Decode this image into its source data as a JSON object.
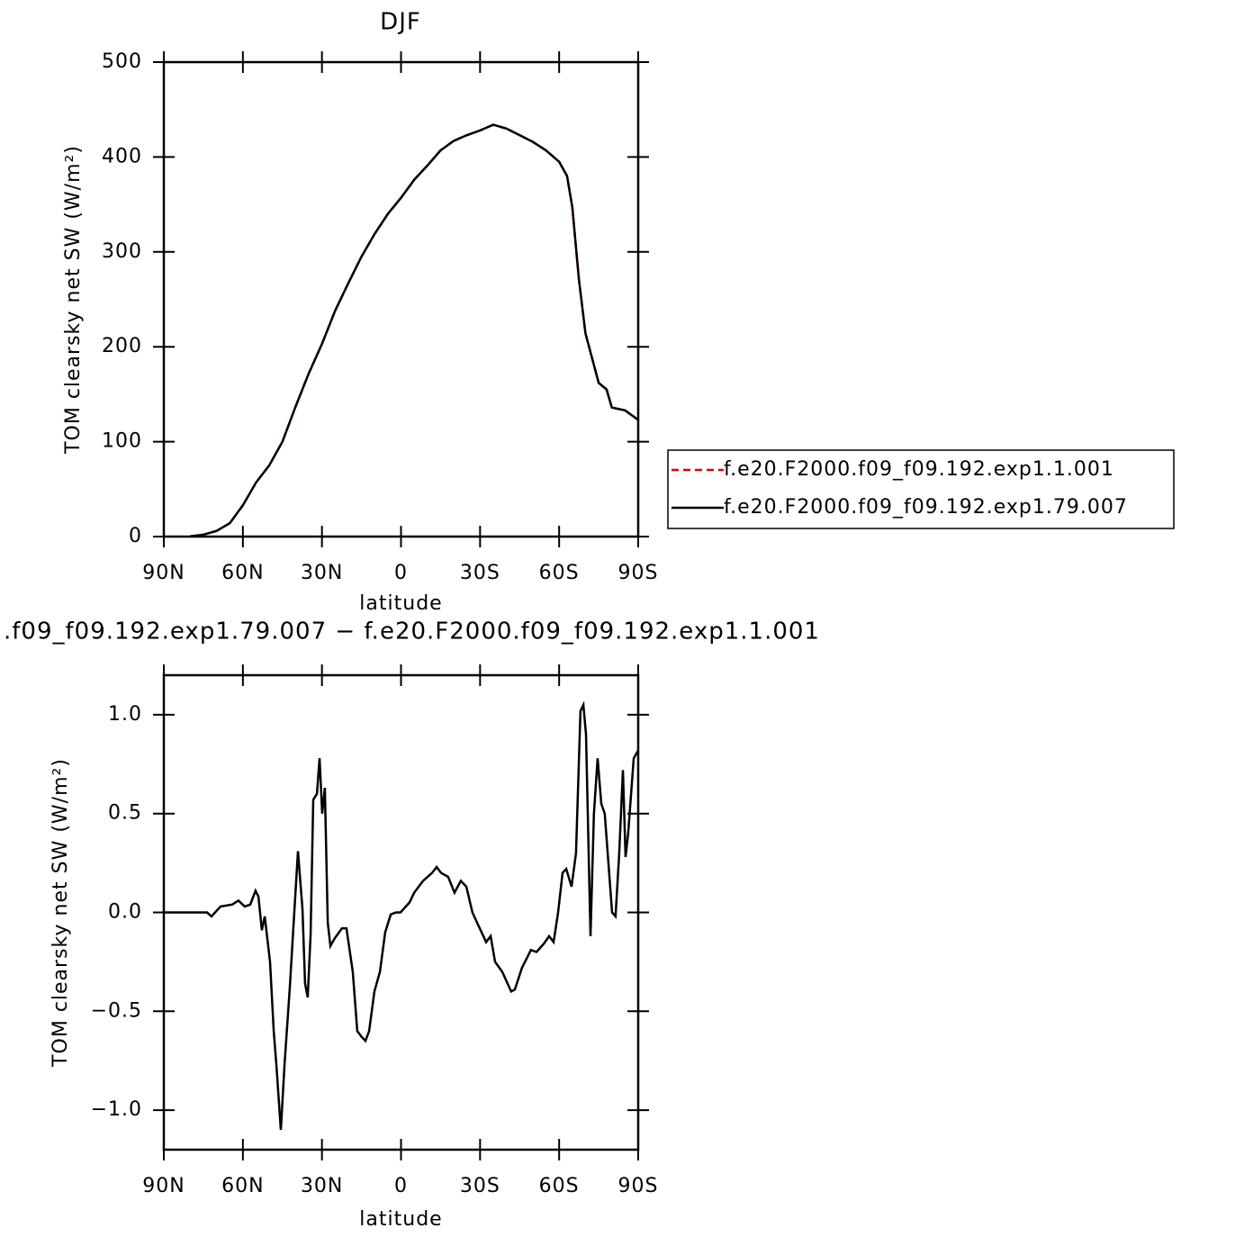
{
  "chart_data": [
    {
      "type": "line",
      "title": "DJF",
      "xlabel": "latitude",
      "ylabel": "TOM clearsky net SW (W/m²)",
      "x": [
        90,
        85,
        80,
        75,
        70,
        65,
        60,
        55,
        50,
        45,
        40,
        35,
        30,
        25,
        20,
        15,
        10,
        5,
        0,
        -5,
        -10,
        -15,
        -20,
        -25,
        -30,
        -35,
        -40,
        -45,
        -50,
        -55,
        -60,
        -63,
        -65,
        -67.5,
        -70,
        -75,
        -78,
        -80,
        -85,
        -90
      ],
      "series": [
        {
          "name": "f.e20.F2000.f09_f09.192.exp1.1.001",
          "color": "#e00000",
          "line_style": "dashed",
          "values": [
            null,
            null,
            0.3,
            2,
            6,
            14,
            33,
            57,
            75,
            100,
            137,
            172,
            203,
            238,
            267,
            295,
            319,
            340,
            357,
            376,
            391,
            407,
            417,
            423,
            428,
            434,
            430,
            423,
            416,
            407,
            395,
            380,
            347,
            271,
            214,
            162,
            155,
            136,
            133,
            123
          ]
        },
        {
          "name": "f.e20.F2000.f09_f09.192.exp1.79.007",
          "color": "#000000",
          "line_style": "solid",
          "values": [
            null,
            null,
            0.3,
            2,
            6,
            14,
            33,
            57,
            75,
            100,
            137,
            172,
            203,
            238,
            267,
            295,
            319,
            340,
            357,
            376,
            391,
            407,
            417,
            423,
            428,
            434,
            430,
            423,
            416,
            407,
            395,
            380,
            347,
            271,
            214,
            162,
            155,
            136,
            133,
            123
          ]
        }
      ],
      "xlim": [
        90,
        -90
      ],
      "xticks": [
        {
          "value": 90,
          "label": "90N"
        },
        {
          "value": 60,
          "label": "60N"
        },
        {
          "value": 30,
          "label": "30N"
        },
        0,
        {
          "value": -30,
          "label": "30S"
        },
        {
          "value": -60,
          "label": "60S"
        },
        {
          "value": -90,
          "label": "90S"
        }
      ],
      "ylim": [
        0,
        500
      ],
      "yticks": [
        0,
        100,
        200,
        300,
        400,
        500
      ],
      "grid": false,
      "legend": "right"
    },
    {
      "type": "line",
      "title": ".f09_f09.192.exp1.79.007 − f.e20.F2000.f09_f09.192.exp1.1.001",
      "xlabel": "latitude",
      "ylabel": "TOM clearsky net SW (W/m²)",
      "x": [
        90,
        73.6,
        71.9,
        68.5,
        64,
        61.7,
        59.3,
        57.2,
        55.2,
        54.1,
        52.8,
        51.7,
        49.7,
        48.3,
        47.3,
        45.6,
        44.2,
        42.2,
        40.5,
        39.1,
        37.4,
        36.4,
        35.4,
        34.3,
        33.3,
        31.9,
        30.9,
        29.9,
        28.9,
        27.8,
        26.8,
        25.1,
        22.4,
        20.7,
        18.3,
        16.6,
        14.9,
        13.5,
        12.1,
        10.1,
        8,
        6,
        3.9,
        1.9,
        0.2,
        -3.2,
        -5,
        -8.4,
        -11.8,
        -13.5,
        -15.2,
        -17.9,
        -20.3,
        -22.7,
        -24.8,
        -27.1,
        -29.5,
        -32.3,
        -34,
        -35.7,
        -38.4,
        -41.8,
        -43.2,
        -45.9,
        -49.3,
        -51.4,
        -54.1,
        -56.2,
        -57.9,
        -59.6,
        -61.3,
        -62.7,
        -64.7,
        -66.4,
        -68.1,
        -69.2,
        -70.2,
        -71.9,
        -73.2,
        -74.6,
        -76,
        -77.3,
        -80.1,
        -81.4,
        -82.8,
        -84.2,
        -85.2,
        -86.2,
        -88.3,
        -90
      ],
      "values": [
        0,
        0,
        -0.02,
        0.03,
        0.04,
        0.06,
        0.03,
        0.04,
        0.11,
        0.08,
        -0.09,
        -0.02,
        -0.25,
        -0.6,
        -0.77,
        -1.1,
        -0.77,
        -0.38,
        0,
        0.31,
        0.02,
        -0.36,
        -0.43,
        -0.11,
        0.57,
        0.6,
        0.78,
        0.5,
        0.63,
        -0.05,
        -0.17,
        -0.13,
        -0.08,
        -0.08,
        -0.3,
        -0.6,
        -0.63,
        -0.65,
        -0.6,
        -0.4,
        -0.3,
        -0.1,
        -0.01,
        0,
        0,
        0.05,
        0.1,
        0.16,
        0.2,
        0.23,
        0.2,
        0.18,
        0.1,
        0.16,
        0.13,
        0,
        -0.07,
        -0.15,
        -0.12,
        -0.25,
        -0.3,
        -0.4,
        -0.39,
        -0.28,
        -0.19,
        -0.2,
        -0.16,
        -0.12,
        -0.15,
        0,
        0.2,
        0.22,
        0.13,
        0.3,
        1.02,
        1.05,
        0.9,
        -0.12,
        0.5,
        0.78,
        0.55,
        0.5,
        0,
        -0.02,
        0.3,
        0.72,
        0.28,
        0.4,
        0.78,
        0.82
      ],
      "color": "#000000",
      "xlim": [
        90,
        -90
      ],
      "xticks": [
        {
          "value": 90,
          "label": "90N"
        },
        {
          "value": 60,
          "label": "60N"
        },
        {
          "value": 30,
          "label": "30N"
        },
        0,
        {
          "value": -30,
          "label": "30S"
        },
        {
          "value": -60,
          "label": "60S"
        },
        {
          "value": -90,
          "label": "90S"
        }
      ],
      "ylim": [
        -1.2,
        1.2
      ],
      "yticks": [
        {
          "value": -1,
          "label": "−1.0"
        },
        {
          "value": -0.5,
          "label": "−0.5"
        },
        {
          "value": 0,
          "label": "0.0"
        },
        0.5,
        {
          "value": 1,
          "label": "1.0"
        }
      ],
      "grid": false
    }
  ]
}
